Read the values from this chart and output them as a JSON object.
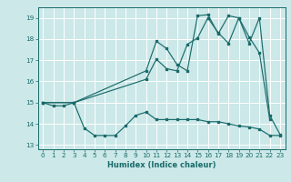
{
  "xlabel": "Humidex (Indice chaleur)",
  "xlim": [
    -0.5,
    23.5
  ],
  "ylim": [
    12.8,
    19.5
  ],
  "xticks": [
    0,
    1,
    2,
    3,
    4,
    5,
    6,
    7,
    8,
    9,
    10,
    11,
    12,
    13,
    14,
    15,
    16,
    17,
    18,
    19,
    20,
    21,
    22,
    23
  ],
  "yticks": [
    13,
    14,
    15,
    16,
    17,
    18,
    19
  ],
  "bg_color": "#cce8e8",
  "line_color": "#1a6b6b",
  "grid_color": "#ffffff",
  "line1_x": [
    0,
    1,
    2,
    3,
    10,
    11,
    12,
    13,
    14,
    15,
    16,
    17,
    18,
    19,
    20,
    21,
    22
  ],
  "line1_y": [
    15.0,
    14.85,
    14.85,
    15.0,
    16.1,
    17.05,
    16.6,
    16.5,
    17.75,
    18.05,
    19.0,
    18.3,
    17.8,
    19.0,
    18.1,
    17.35,
    14.2
  ],
  "line2_x": [
    0,
    3,
    10,
    11,
    12,
    13,
    14,
    15,
    16,
    17,
    18,
    19,
    20,
    21,
    22,
    23
  ],
  "line2_y": [
    15.0,
    15.0,
    16.5,
    17.9,
    17.55,
    16.8,
    16.5,
    19.1,
    19.15,
    18.25,
    19.1,
    19.0,
    17.8,
    19.0,
    14.4,
    13.5
  ],
  "line3_x": [
    0,
    3,
    4,
    5,
    6,
    7,
    8,
    9,
    10,
    11,
    12,
    13,
    14,
    15,
    16,
    17,
    18,
    19,
    20,
    21,
    22,
    23
  ],
  "line3_y": [
    15.0,
    15.0,
    13.8,
    13.45,
    13.45,
    13.45,
    13.9,
    14.4,
    14.55,
    14.2,
    14.2,
    14.2,
    14.2,
    14.2,
    14.1,
    14.1,
    14.0,
    13.9,
    13.85,
    13.75,
    13.45,
    13.45
  ],
  "xlabel_fontsize": 6.0,
  "tick_fontsize": 5.2,
  "linewidth": 0.85,
  "markersize": 2.0
}
